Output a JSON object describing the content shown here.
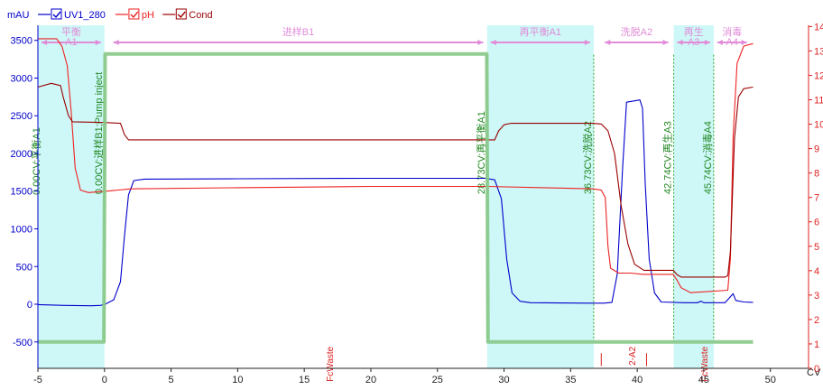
{
  "chart_data": {
    "type": "line",
    "title": "",
    "xlabel": "CV",
    "ylabel_left": "mAU",
    "xlim": [
      -5,
      53
    ],
    "ylim_left": [
      -850,
      3700
    ],
    "ylim_right": [
      0,
      14.05
    ],
    "x_ticks": [
      -5,
      0,
      5,
      10,
      15,
      20,
      25,
      30,
      35,
      40,
      45,
      50
    ],
    "y_ticks_left": [
      -500,
      0,
      500,
      1000,
      1500,
      2000,
      2500,
      3000,
      3500
    ],
    "y_ticks_right": [
      0,
      1,
      2,
      3,
      4,
      5,
      6,
      7,
      8,
      9,
      10,
      11,
      12,
      13,
      14
    ],
    "legend": {
      "placement": "top-left",
      "items": [
        {
          "label": "UV1_280",
          "color": "#0000cc",
          "checked": true
        },
        {
          "label": "pH",
          "color": "#ee2222",
          "checked": true
        },
        {
          "label": "Cond",
          "color": "#990000",
          "checked": true
        }
      ]
    },
    "phases": [
      {
        "label": "平衡A1",
        "start": -5,
        "end": 0,
        "shaded": true
      },
      {
        "label": "进样B1",
        "start": 0.4,
        "end": 28.7,
        "shaded": false
      },
      {
        "label": "再平衡A1",
        "start": 28.73,
        "end": 36.73,
        "shaded": true
      },
      {
        "label": "洗脱A2",
        "start": 37.3,
        "end": 42.6,
        "shaded": false
      },
      {
        "label": "再生A3",
        "start": 42.74,
        "end": 45.74,
        "shaded": true
      },
      {
        "label": "消毒A4",
        "start": 45.74,
        "end": 48.5,
        "shaded": false
      }
    ],
    "events": [
      {
        "x": 0.0,
        "label": "0.00CV:进样B1;Pump inject"
      },
      {
        "x": 28.73,
        "label": "28.73CV:再平衡A1"
      },
      {
        "x": 36.73,
        "label": "36.73CV:洗脱A2"
      },
      {
        "x": 42.74,
        "label": "42.74CV:再生A3"
      },
      {
        "x": 45.74,
        "label": "45.74CV:消毒A4"
      }
    ],
    "left_edge_event_label": "0.00CV:平衡A1",
    "fractions": [
      {
        "x": 16.9,
        "label": "FcWaste"
      },
      {
        "x": 39.6,
        "label": "2-A2"
      },
      {
        "x": 45.0,
        "label": "FcWaste"
      }
    ],
    "fraction_ticks": [
      37.3,
      40.7
    ],
    "series": [
      {
        "name": "UV1_280",
        "axis": "left",
        "color": "#0000cc",
        "points": [
          [
            -5,
            -5
          ],
          [
            -3,
            -15
          ],
          [
            -1,
            -20
          ],
          [
            -0.3,
            -15
          ],
          [
            0.1,
            5
          ],
          [
            0.7,
            60
          ],
          [
            1.2,
            300
          ],
          [
            1.5,
            900
          ],
          [
            1.8,
            1450
          ],
          [
            2.2,
            1640
          ],
          [
            3,
            1660
          ],
          [
            10,
            1665
          ],
          [
            20,
            1670
          ],
          [
            28.6,
            1670
          ],
          [
            29.3,
            1650
          ],
          [
            29.8,
            1400
          ],
          [
            30.2,
            600
          ],
          [
            30.6,
            150
          ],
          [
            31.2,
            40
          ],
          [
            32,
            20
          ],
          [
            36.5,
            15
          ],
          [
            37.5,
            15
          ],
          [
            38.1,
            25
          ],
          [
            38.5,
            400
          ],
          [
            38.9,
            1800
          ],
          [
            39.2,
            2680
          ],
          [
            40.2,
            2710
          ],
          [
            40.4,
            2600
          ],
          [
            40.6,
            1600
          ],
          [
            40.9,
            600
          ],
          [
            41.3,
            150
          ],
          [
            41.8,
            30
          ],
          [
            43.5,
            20
          ],
          [
            44.5,
            20
          ],
          [
            44.8,
            40
          ],
          [
            45,
            20
          ],
          [
            46.6,
            20
          ],
          [
            46.9,
            80
          ],
          [
            47.2,
            140
          ],
          [
            47.4,
            50
          ],
          [
            48,
            30
          ],
          [
            48.7,
            25
          ]
        ]
      },
      {
        "name": "pH",
        "axis": "right",
        "color": "#ee2222",
        "points": [
          [
            -5,
            13.5
          ],
          [
            -3.6,
            13.5
          ],
          [
            -3.2,
            13.2
          ],
          [
            -2.8,
            12.4
          ],
          [
            -2.5,
            10.5
          ],
          [
            -2.2,
            8.2
          ],
          [
            -1.8,
            7.3
          ],
          [
            -1.2,
            7.2
          ],
          [
            0,
            7.25
          ],
          [
            2,
            7.35
          ],
          [
            10,
            7.4
          ],
          [
            20,
            7.45
          ],
          [
            28.7,
            7.45
          ],
          [
            33,
            7.4
          ],
          [
            36.7,
            7.35
          ],
          [
            37.3,
            7.3
          ],
          [
            37.6,
            7.0
          ],
          [
            37.8,
            5.0
          ],
          [
            38.0,
            4.1
          ],
          [
            38.6,
            3.9
          ],
          [
            39.5,
            3.9
          ],
          [
            40.5,
            3.85
          ],
          [
            42.7,
            3.85
          ],
          [
            43.0,
            3.6
          ],
          [
            43.3,
            3.3
          ],
          [
            44,
            3.1
          ],
          [
            46.8,
            3.2
          ],
          [
            47,
            4.5
          ],
          [
            47.2,
            9.5
          ],
          [
            47.5,
            12.5
          ],
          [
            48,
            13.2
          ],
          [
            48.7,
            13.3
          ]
        ]
      },
      {
        "name": "Cond",
        "axis": "left",
        "color": "#990000",
        "points": [
          [
            -5,
            2880
          ],
          [
            -4,
            2930
          ],
          [
            -3.3,
            2900
          ],
          [
            -3.1,
            2750
          ],
          [
            -2.7,
            2500
          ],
          [
            -2.4,
            2420
          ],
          [
            0,
            2410
          ],
          [
            1.2,
            2400
          ],
          [
            1.5,
            2250
          ],
          [
            1.8,
            2180
          ],
          [
            10,
            2180
          ],
          [
            20,
            2180
          ],
          [
            28.7,
            2180
          ],
          [
            29.3,
            2180
          ],
          [
            29.6,
            2300
          ],
          [
            30,
            2380
          ],
          [
            30.5,
            2400
          ],
          [
            36.7,
            2400
          ],
          [
            37.3,
            2390
          ],
          [
            37.8,
            2300
          ],
          [
            38.3,
            2000
          ],
          [
            38.8,
            1300
          ],
          [
            39.3,
            800
          ],
          [
            39.8,
            530
          ],
          [
            40.5,
            450
          ],
          [
            42.7,
            450
          ],
          [
            43.0,
            390
          ],
          [
            43.3,
            360
          ],
          [
            46.6,
            360
          ],
          [
            46.8,
            380
          ],
          [
            47,
            700
          ],
          [
            47.3,
            2200
          ],
          [
            47.6,
            2750
          ],
          [
            48,
            2860
          ],
          [
            48.7,
            2880
          ]
        ]
      },
      {
        "name": "",
        "axis": "left",
        "color": "#88c888",
        "points": [
          [
            -5,
            -500
          ],
          [
            -0.05,
            -500
          ],
          [
            0.05,
            3320
          ],
          [
            28.7,
            3320
          ],
          [
            28.8,
            -500
          ],
          [
            48.7,
            -500
          ]
        ]
      }
    ]
  }
}
